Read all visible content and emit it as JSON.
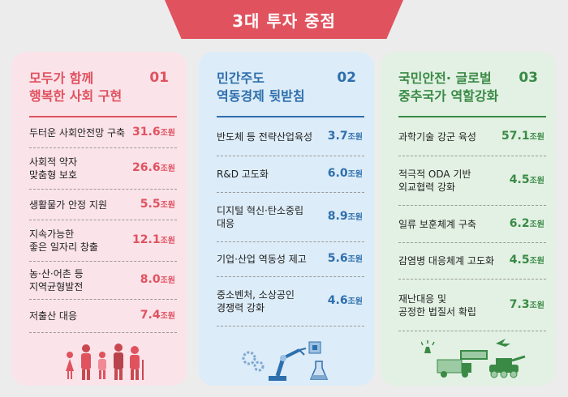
{
  "header": {
    "title": "3대 투자 중점"
  },
  "cards": [
    {
      "number": "01",
      "title_line1": "모두가 함께",
      "title_line2": "행복한 사회 구현",
      "accent": "#e0525e",
      "items": [
        {
          "label": "두터운 사회안전망 구축",
          "amount": "31.6",
          "unit": "조원"
        },
        {
          "label": "사회적 약자\n맞춤형 보호",
          "amount": "26.6",
          "unit": "조원"
        },
        {
          "label": "생활물가 안정 지원",
          "amount": "5.5",
          "unit": "조원"
        },
        {
          "label": "지속가능한\n좋은 일자리 창출",
          "amount": "12.1",
          "unit": "조원"
        },
        {
          "label": "농·산·어촌 등\n지역균형발전",
          "amount": "8.0",
          "unit": "조원"
        },
        {
          "label": "저출산 대응",
          "amount": "7.4",
          "unit": "조원"
        }
      ]
    },
    {
      "number": "02",
      "title_line1": "민간주도",
      "title_line2": "역동경제 뒷받침",
      "accent": "#2e6fad",
      "items": [
        {
          "label": "반도체 등 전략산업육성",
          "amount": "3.7",
          "unit": "조원"
        },
        {
          "label": "R&D 고도화",
          "amount": "6.0",
          "unit": "조원"
        },
        {
          "label": "디지털 혁신·탄소중립\n대응",
          "amount": "8.9",
          "unit": "조원"
        },
        {
          "label": "기업·산업 역동성 제고",
          "amount": "5.6",
          "unit": "조원"
        },
        {
          "label": "중소벤처, 소상공인\n경쟁력 강화",
          "amount": "4.6",
          "unit": "조원"
        }
      ]
    },
    {
      "number": "03",
      "title_line1": "국민안전· 글로벌",
      "title_line2": "중추국가 역할강화",
      "accent": "#3a8a46",
      "items": [
        {
          "label": "과학기술 강군 육성",
          "amount": "57.1",
          "unit": "조원"
        },
        {
          "label": "적극적 ODA 기반\n외교협력 강화",
          "amount": "4.5",
          "unit": "조원"
        },
        {
          "label": "일류 보훈체계 구축",
          "amount": "6.2",
          "unit": "조원"
        },
        {
          "label": "감염병 대응체계 고도화",
          "amount": "4.5",
          "unit": "조원"
        },
        {
          "label": "재난대응 및\n공정한 법질서 확립",
          "amount": "7.3",
          "unit": "조원"
        }
      ]
    }
  ],
  "illustrations": {
    "card1": "family-icon",
    "card2": "robot-arm-icon",
    "card3": "military-vehicles-icon"
  }
}
